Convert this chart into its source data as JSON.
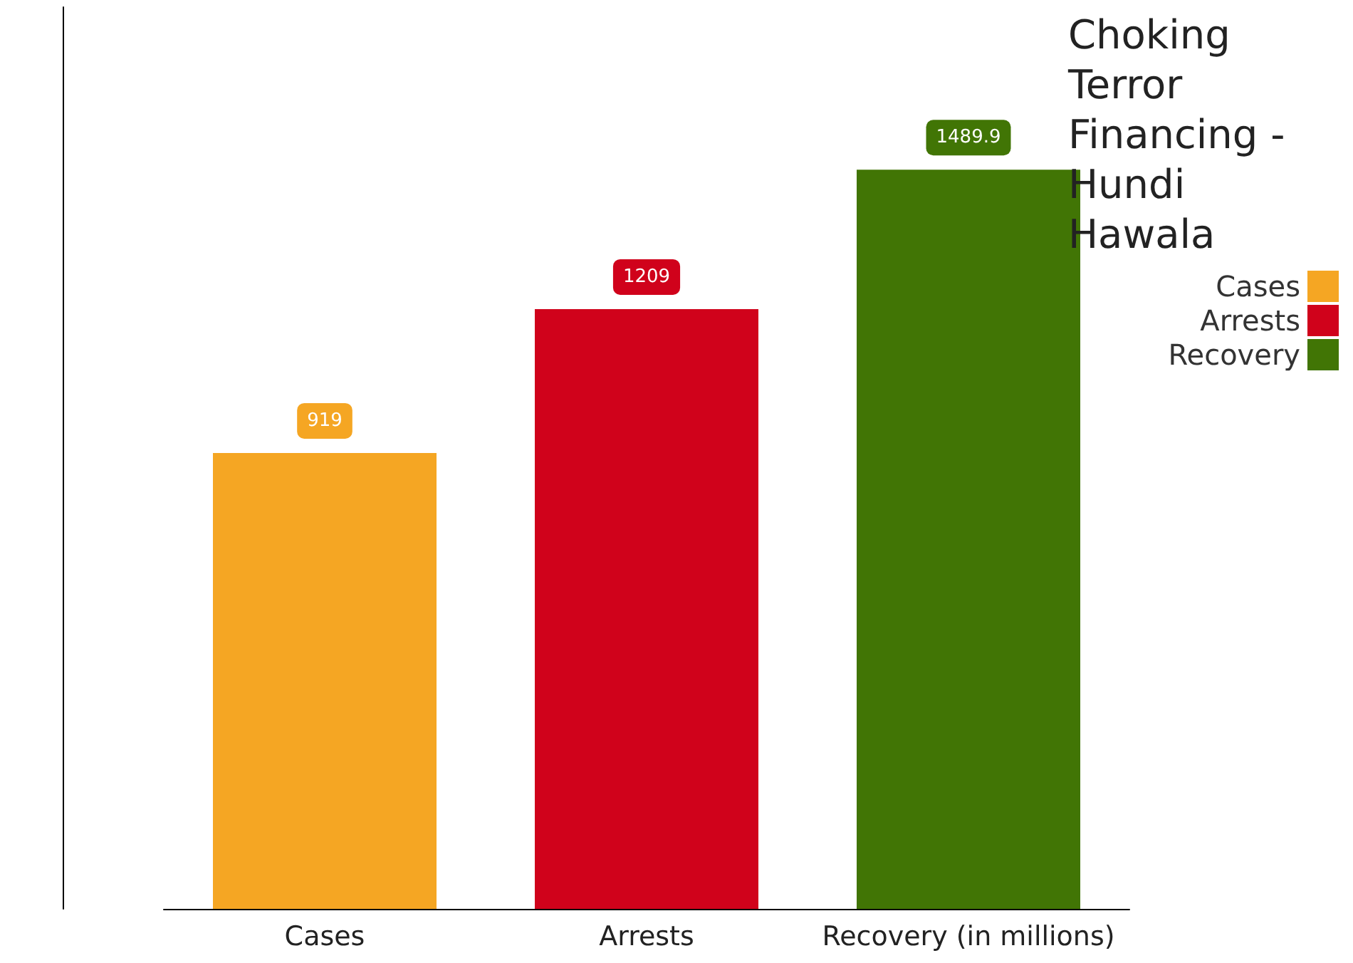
{
  "chart_data": {
    "type": "bar",
    "title": "Choking Terror Financing - Hundi Hawala",
    "categories": [
      "Cases",
      "Arrests",
      "Recovery (in millions)"
    ],
    "series": [
      {
        "name": "Cases",
        "color": "#f5a623",
        "values": [
          919,
          null,
          null
        ]
      },
      {
        "name": "Arrests",
        "color": "#d0021b",
        "values": [
          null,
          1209,
          null
        ]
      },
      {
        "name": "Recovery",
        "color": "#417505",
        "values": [
          null,
          null,
          1489.9
        ]
      }
    ],
    "data_labels": true,
    "legend": "top right",
    "grid": false
  }
}
